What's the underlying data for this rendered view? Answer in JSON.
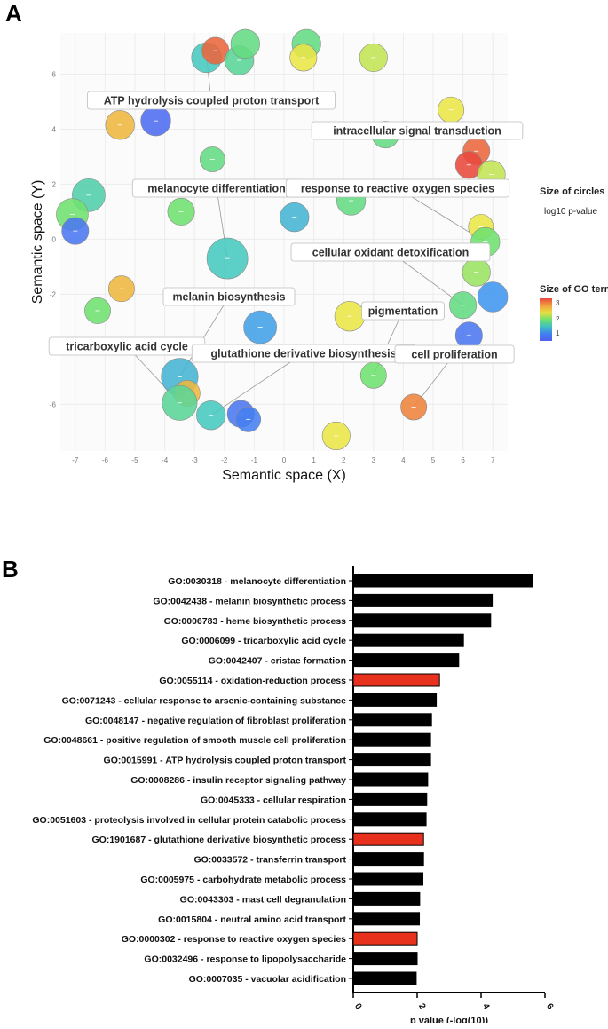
{
  "panel_a_letter": "A",
  "panel_b_letter": "B",
  "chart_data": [
    {
      "type": "scatter",
      "xlabel": "Semantic space (X)",
      "ylabel": "Semantic space (Y)",
      "xlim": [
        -7.5,
        7.5
      ],
      "ylim": [
        -7.7,
        7.5
      ],
      "xticks": [
        -7,
        -6,
        -5,
        -4,
        -3,
        -2,
        -1,
        0,
        1,
        2,
        3,
        4,
        5,
        6,
        7
      ],
      "yticks": [
        -6,
        -4,
        -2,
        0,
        2,
        4,
        6
      ],
      "grid": true,
      "size_legend": {
        "title": "Size of circles",
        "label": "log10 p-value"
      },
      "color_legend": {
        "title": "Size of GO terms",
        "ticks": [
          "3",
          "2",
          "1"
        ],
        "colors": [
          "#e8483c",
          "#f0a040",
          "#e8e040",
          "#70e070",
          "#40c0c0",
          "#4080f0",
          "#5060f0"
        ],
        "position": "right"
      },
      "points": [
        {
          "x": -2.6,
          "y": 6.6,
          "value": 2.0,
          "size": 2.3
        },
        {
          "x": -2.3,
          "y": 6.85,
          "value": 3.2,
          "size": 2.0
        },
        {
          "x": -1.5,
          "y": 6.5,
          "value": 2.2,
          "size": 2.2
        },
        {
          "x": -1.3,
          "y": 7.1,
          "value": 2.3,
          "size": 2.2
        },
        {
          "x": 0.75,
          "y": 7.1,
          "value": 2.3,
          "size": 2.2
        },
        {
          "x": 0.65,
          "y": 6.6,
          "value": 2.7,
          "size": 2.0
        },
        {
          "x": 3.0,
          "y": 6.6,
          "value": 2.6,
          "size": 2.1
        },
        {
          "x": -4.3,
          "y": 4.3,
          "value": 1.1,
          "size": 2.3
        },
        {
          "x": -5.5,
          "y": 4.15,
          "value": 2.9,
          "size": 2.2
        },
        {
          "x": 5.6,
          "y": 4.7,
          "value": 2.7,
          "size": 1.9
        },
        {
          "x": 3.4,
          "y": 3.8,
          "value": 2.3,
          "size": 2.0
        },
        {
          "x": 6.45,
          "y": 3.2,
          "value": 3.2,
          "size": 2.0
        },
        {
          "x": 6.2,
          "y": 2.7,
          "value": 3.3,
          "size": 2.0
        },
        {
          "x": 6.95,
          "y": 2.35,
          "value": 2.6,
          "size": 2.1
        },
        {
          "x": -2.4,
          "y": 2.9,
          "value": 2.3,
          "size": 1.8
        },
        {
          "x": -6.55,
          "y": 1.6,
          "value": 2.1,
          "size": 2.6
        },
        {
          "x": -7.1,
          "y": 0.9,
          "value": 2.4,
          "size": 2.5
        },
        {
          "x": -7.0,
          "y": 0.3,
          "value": 1.2,
          "size": 2.0
        },
        {
          "x": -3.45,
          "y": 1.0,
          "value": 2.4,
          "size": 2.0
        },
        {
          "x": 2.25,
          "y": 1.4,
          "value": 2.3,
          "size": 2.2
        },
        {
          "x": 0.35,
          "y": 0.8,
          "value": 1.8,
          "size": 2.2
        },
        {
          "x": 6.6,
          "y": 0.45,
          "value": 2.7,
          "size": 1.8
        },
        {
          "x": 6.75,
          "y": -0.1,
          "value": 2.4,
          "size": 2.2
        },
        {
          "x": -1.9,
          "y": -0.7,
          "value": 2.0,
          "size": 3.4
        },
        {
          "x": 6.45,
          "y": -1.2,
          "value": 2.5,
          "size": 2.1
        },
        {
          "x": -5.45,
          "y": -1.8,
          "value": 2.9,
          "size": 1.9
        },
        {
          "x": 6.0,
          "y": -2.4,
          "value": 2.3,
          "size": 2.0
        },
        {
          "x": 7.0,
          "y": -2.1,
          "value": 1.5,
          "size": 2.3
        },
        {
          "x": -6.25,
          "y": -2.6,
          "value": 2.4,
          "size": 1.9
        },
        {
          "x": 2.2,
          "y": -2.8,
          "value": 2.7,
          "size": 2.3
        },
        {
          "x": -0.8,
          "y": -3.2,
          "value": 1.6,
          "size": 2.6
        },
        {
          "x": 6.2,
          "y": -3.5,
          "value": 1.2,
          "size": 2.0
        },
        {
          "x": -3.5,
          "y": -5.0,
          "value": 1.8,
          "size": 3.0
        },
        {
          "x": 3.0,
          "y": -4.95,
          "value": 2.4,
          "size": 1.9
        },
        {
          "x": -3.25,
          "y": -5.6,
          "value": 2.9,
          "size": 1.9
        },
        {
          "x": -3.5,
          "y": -5.95,
          "value": 2.2,
          "size": 2.8
        },
        {
          "x": -2.45,
          "y": -6.4,
          "value": 2.0,
          "size": 2.2
        },
        {
          "x": -1.45,
          "y": -6.35,
          "value": 1.2,
          "size": 2.0
        },
        {
          "x": -1.2,
          "y": -6.55,
          "value": 1.3,
          "size": 1.8
        },
        {
          "x": 4.35,
          "y": -6.1,
          "value": 3.1,
          "size": 1.9
        },
        {
          "x": 1.75,
          "y": -7.15,
          "value": 2.7,
          "size": 2.1
        }
      ],
      "annotations": [
        {
          "text": "ATP hydrolysis coupled proton transport",
          "x": -2.6,
          "y": 6.6
        },
        {
          "text": "intracellular signal transduction",
          "x": 3.4,
          "y": 3.8
        },
        {
          "text": "melanocyte differentiation",
          "x": -1.9,
          "y": -0.7
        },
        {
          "text": "response to reactive oxygen species",
          "x": 6.75,
          "y": -0.1
        },
        {
          "text": "cellular oxidant detoxification",
          "x": 6.0,
          "y": -2.4
        },
        {
          "text": "melanin biosynthesis",
          "x": -3.5,
          "y": -5.0
        },
        {
          "text": "pigmentation",
          "x": 3.0,
          "y": -4.95
        },
        {
          "text": "tricarboxylic acid cycle",
          "x": -3.5,
          "y": -5.95
        },
        {
          "text": "glutathione derivative biosynthesis",
          "x": -2.45,
          "y": -6.4
        },
        {
          "text": "cell proliferation",
          "x": 4.35,
          "y": -6.1
        }
      ]
    },
    {
      "type": "bar",
      "orientation": "horizontal",
      "xlabel": "p value (-log(10))",
      "xlim": [
        0,
        6
      ],
      "xticks": [
        "0",
        "2",
        "4",
        "6"
      ],
      "bar_colors": {
        "default": "#000000",
        "highlight": "#e8311c"
      },
      "categories": [
        "GO:0030318 - melanocyte differentiation",
        "GO:0042438 - melanin biosynthetic process",
        "GO:0006783 - heme biosynthetic process",
        "GO:0006099 - tricarboxylic acid cycle",
        "GO:0042407 - cristae formation",
        "GO:0055114 - oxidation-reduction process",
        "GO:0071243 - cellular response to arsenic-containing substance",
        "GO:0048147 - negative regulation of fibroblast proliferation",
        "GO:0048661 - positive regulation of smooth muscle cell proliferation",
        "GO:0015991 - ATP hydrolysis coupled proton transport",
        "GO:0008286 - insulin receptor signaling pathway",
        "GO:0045333 - cellular respiration",
        "GO:0051603 - proteolysis involved in cellular protein catabolic process",
        "GO:1901687 - glutathione derivative biosynthetic process",
        "GO:0033572 - transferrin transport",
        "GO:0005975 - carbohydrate metabolic process",
        "GO:0043303 - mast cell degranulation",
        "GO:0015804 - neutral amino acid transport",
        "GO:0000302 - response to reactive oxygen species",
        "GO:0032496 - response to lipopolysaccharide",
        "GO:0007035 - vacuolar acidification"
      ],
      "values": [
        5.6,
        4.35,
        4.3,
        3.45,
        3.3,
        2.7,
        2.6,
        2.45,
        2.42,
        2.42,
        2.33,
        2.3,
        2.28,
        2.2,
        2.2,
        2.18,
        2.08,
        2.07,
        2.0,
        2.0,
        1.97
      ],
      "highlighted": [
        false,
        false,
        false,
        false,
        false,
        true,
        false,
        false,
        false,
        false,
        false,
        false,
        false,
        true,
        false,
        false,
        false,
        false,
        true,
        false,
        false
      ]
    }
  ]
}
